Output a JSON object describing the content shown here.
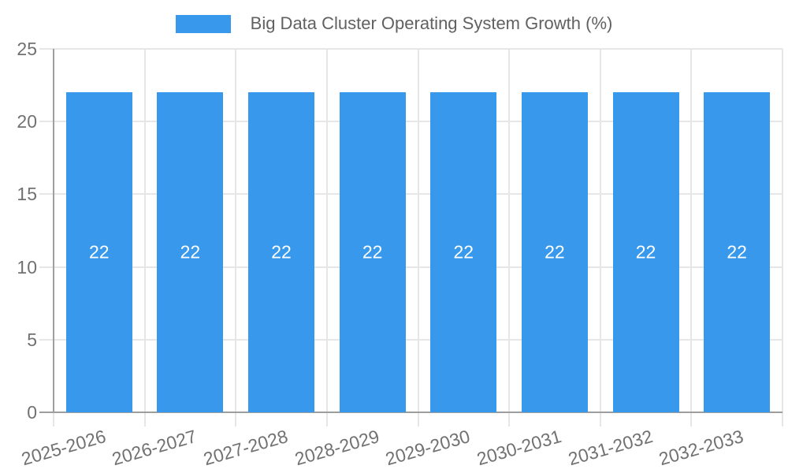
{
  "legend": {
    "label": "Big Data Cluster Operating System Growth (%)"
  },
  "chart_data": {
    "type": "bar",
    "title": "Big Data Cluster Operating System Growth (%)",
    "categories": [
      "2025-2026",
      "2026-2027",
      "2027-2028",
      "2028-2029",
      "2029-2030",
      "2030-2031",
      "2031-2032",
      "2032-2033"
    ],
    "values": [
      22,
      22,
      22,
      22,
      22,
      22,
      22,
      22
    ],
    "value_labels": [
      "22",
      "22",
      "22",
      "22",
      "22",
      "22",
      "22",
      "22"
    ],
    "xlabel": "",
    "ylabel": "",
    "ylim": [
      0,
      25
    ],
    "yticks": [
      0,
      5,
      10,
      15,
      20,
      25
    ],
    "grid": true,
    "legend_position": "top-center",
    "colors": {
      "bar": "#3899ec",
      "grid": "#e6e6e6",
      "axis": "#9e9e9e",
      "tick_text": "#717171",
      "legend_text": "#616161",
      "bar_label": "#ffffff",
      "background": "#ffffff"
    }
  }
}
